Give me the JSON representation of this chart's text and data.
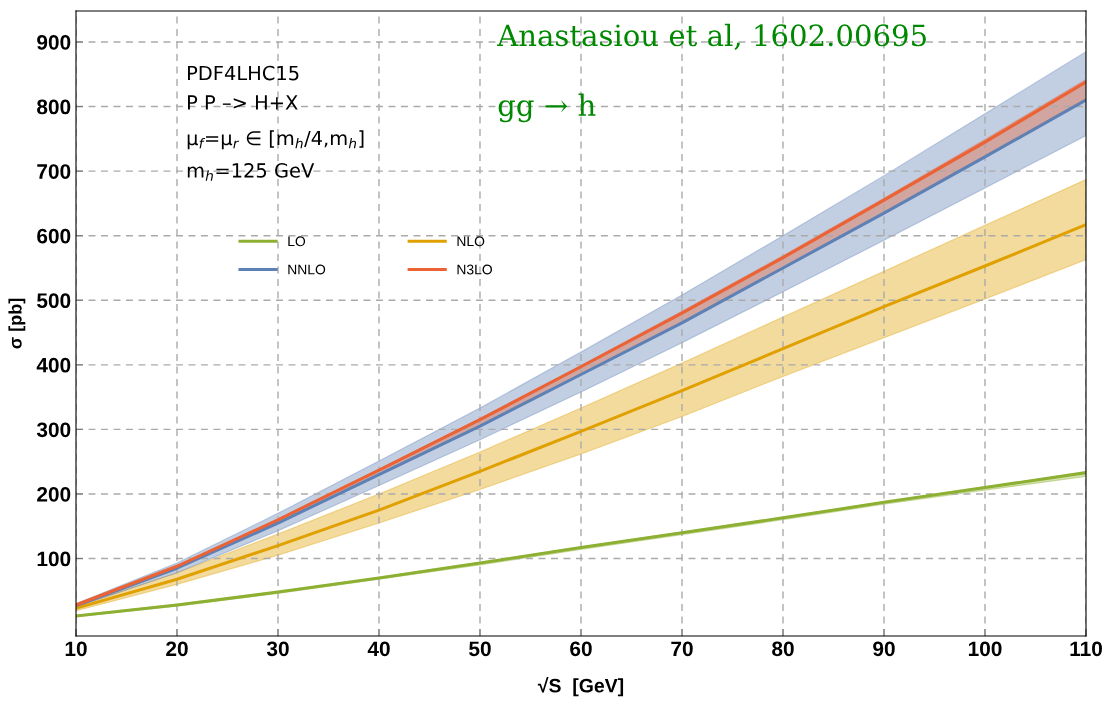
{
  "chart_data": {
    "type": "line",
    "xlabel": "√S  [GeV]",
    "ylabel": "σ [pb]",
    "x": [
      10,
      20,
      30,
      40,
      50,
      60,
      70,
      80,
      90,
      100,
      110
    ],
    "series": [
      {
        "name": "LO",
        "color": "#8db032",
        "values": [
          11,
          28,
          48,
          70,
          93,
          117,
          140,
          163,
          187,
          210,
          233
        ],
        "lower": [
          10,
          26,
          46,
          68,
          90,
          114,
          137,
          160,
          184,
          206,
          227
        ],
        "upper": [
          12,
          29,
          49,
          71,
          94,
          118,
          141,
          164,
          188,
          211,
          234
        ]
      },
      {
        "name": "NLO",
        "color": "#e0a000",
        "values": [
          23,
          68,
          120,
          175,
          235,
          297,
          360,
          425,
          490,
          553,
          617
        ],
        "lower": [
          19,
          60,
          105,
          155,
          207,
          262,
          320,
          382,
          442,
          502,
          563
        ],
        "upper": [
          26,
          78,
          138,
          200,
          265,
          333,
          403,
          474,
          545,
          616,
          687
        ]
      },
      {
        "name": "NNLO",
        "color": "#5e81b5",
        "values": [
          27,
          85,
          155,
          230,
          305,
          385,
          465,
          550,
          635,
          722,
          810
        ],
        "lower": [
          25,
          78,
          143,
          213,
          284,
          358,
          434,
          513,
          593,
          674,
          755
        ],
        "upper": [
          30,
          93,
          170,
          251,
          333,
          420,
          508,
          600,
          693,
          789,
          885
        ]
      },
      {
        "name": "N3LO",
        "color": "#eb6235",
        "values": [
          28,
          88,
          160,
          237,
          315,
          397,
          480,
          566,
          655,
          745,
          838
        ],
        "lower": [
          27,
          85,
          155,
          230,
          305,
          385,
          466,
          549,
          636,
          724,
          812
        ],
        "upper": [
          29,
          89,
          161,
          238,
          317,
          399,
          483,
          569,
          658,
          749,
          842
        ]
      }
    ],
    "xlim": [
      10,
      110
    ],
    "xticks": [
      10,
      20,
      30,
      40,
      50,
      60,
      70,
      80,
      90,
      100,
      110
    ],
    "ylim": [
      -20,
      948
    ],
    "yticks": [
      100,
      200,
      300,
      400,
      500,
      600,
      700,
      800,
      900
    ],
    "grid": true,
    "legend": "top left",
    "line_style": "solid",
    "marker": "none",
    "annotations": [
      "PDF4LHC15",
      "P P –> H+X",
      "μ$_{f}$=μ$_{r}$ ∈ [m$_{h}$/4,m$_{h}$]",
      "m$_{h}$=125 GeV",
      "Anastasiou et al, 1602.00695",
      "gg → h"
    ]
  }
}
